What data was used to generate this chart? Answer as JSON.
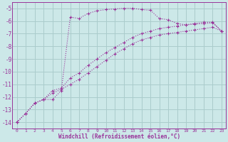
{
  "xlabel": "Windchill (Refroidissement éolien,°C)",
  "bg_color": "#cce8e8",
  "grid_color": "#aacccc",
  "line_color": "#993399",
  "xlim": [
    -0.5,
    23.5
  ],
  "ylim": [
    -14.5,
    -4.5
  ],
  "xticks": [
    0,
    1,
    2,
    3,
    4,
    5,
    6,
    7,
    8,
    9,
    10,
    11,
    12,
    13,
    14,
    15,
    16,
    17,
    18,
    19,
    20,
    21,
    22,
    23
  ],
  "yticks": [
    -14,
    -13,
    -12,
    -11,
    -10,
    -9,
    -8,
    -7,
    -6,
    -5
  ],
  "curve1_x": [
    0,
    1,
    2,
    3,
    4,
    5,
    6,
    7,
    8,
    9,
    10,
    11,
    12,
    13,
    14,
    15,
    16,
    17,
    18,
    19,
    20,
    21,
    22,
    23
  ],
  "curve1_y": [
    -14.0,
    -13.3,
    -12.5,
    -12.2,
    -12.2,
    -11.5,
    -5.7,
    -5.8,
    -5.4,
    -5.2,
    -5.1,
    -5.05,
    -5.0,
    -5.0,
    -5.1,
    -5.15,
    -5.8,
    -5.9,
    -6.2,
    -6.3,
    -6.2,
    -6.1,
    -6.1,
    -6.8
  ],
  "curve2_x": [
    0,
    1,
    2,
    3,
    4,
    5,
    6,
    7,
    8,
    9,
    10,
    11,
    12,
    13,
    14,
    15,
    16,
    17,
    18,
    19,
    20,
    21,
    22,
    23
  ],
  "curve2_y": [
    -14.0,
    -13.3,
    -12.5,
    -12.2,
    -11.5,
    -11.3,
    -10.5,
    -10.1,
    -9.5,
    -9.0,
    -8.5,
    -8.1,
    -7.7,
    -7.3,
    -7.0,
    -6.8,
    -6.6,
    -6.5,
    -6.4,
    -6.3,
    -6.25,
    -6.2,
    -6.15,
    -6.8
  ],
  "curve3_x": [
    0,
    1,
    2,
    3,
    4,
    5,
    6,
    7,
    8,
    9,
    10,
    11,
    12,
    13,
    14,
    15,
    16,
    17,
    18,
    19,
    20,
    21,
    22,
    23
  ],
  "curve3_y": [
    -14.0,
    -13.3,
    -12.5,
    -12.2,
    -11.7,
    -11.4,
    -11.0,
    -10.6,
    -10.1,
    -9.6,
    -9.1,
    -8.6,
    -8.2,
    -7.8,
    -7.5,
    -7.3,
    -7.1,
    -7.0,
    -6.9,
    -6.8,
    -6.7,
    -6.6,
    -6.5,
    -6.8
  ]
}
